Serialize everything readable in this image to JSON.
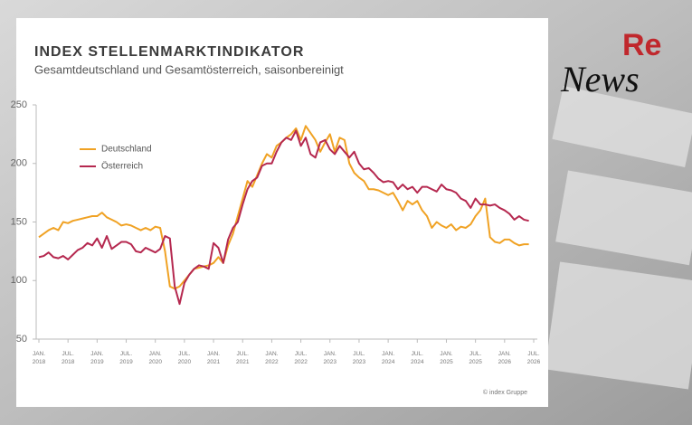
{
  "chart_data": {
    "type": "line",
    "title": "INDEX STELLENMARKTINDIKATOR",
    "subtitle": "Gesamtdeutschland und Gesamtösterreich, saisonbereinigt",
    "source": "© index Gruppe",
    "x": [
      "2018-01",
      "2018-02",
      "2018-03",
      "2018-04",
      "2018-05",
      "2018-06",
      "2018-07",
      "2018-08",
      "2018-09",
      "2018-10",
      "2018-11",
      "2018-12",
      "2019-01",
      "2019-02",
      "2019-03",
      "2019-04",
      "2019-05",
      "2019-06",
      "2019-07",
      "2019-08",
      "2019-09",
      "2019-10",
      "2019-11",
      "2019-12",
      "2020-01",
      "2020-02",
      "2020-03",
      "2020-04",
      "2020-05",
      "2020-06",
      "2020-07",
      "2020-08",
      "2020-09",
      "2020-10",
      "2020-11",
      "2020-12",
      "2021-01",
      "2021-02",
      "2021-03",
      "2021-04",
      "2021-05",
      "2021-06",
      "2021-07",
      "2021-08",
      "2021-09",
      "2021-10",
      "2021-11",
      "2021-12",
      "2022-01",
      "2022-02",
      "2022-03",
      "2022-04",
      "2022-05",
      "2022-06",
      "2022-07",
      "2022-08",
      "2022-09",
      "2022-10",
      "2022-11",
      "2022-12",
      "2023-01",
      "2023-02",
      "2023-03",
      "2023-04",
      "2023-05",
      "2023-06",
      "2023-07",
      "2023-08",
      "2023-09",
      "2023-10",
      "2023-11",
      "2023-12",
      "2024-01",
      "2024-02",
      "2024-03",
      "2024-04",
      "2024-05",
      "2024-06",
      "2024-07",
      "2024-08",
      "2024-09",
      "2024-10",
      "2024-11",
      "2024-12",
      "2025-01",
      "2025-02",
      "2025-03",
      "2025-04",
      "2025-05",
      "2025-06",
      "2025-07",
      "2025-08",
      "2025-09",
      "2025-10",
      "2025-11",
      "2025-12",
      "2026-01",
      "2026-02",
      "2026-03",
      "2026-04",
      "2026-05",
      "2026-06"
    ],
    "series": [
      {
        "name": "Deutschland",
        "color": "#f0a224",
        "values": [
          137,
          140,
          143,
          145,
          143,
          150,
          149,
          151,
          152,
          153,
          154,
          155,
          155,
          158,
          154,
          152,
          150,
          147,
          148,
          147,
          145,
          143,
          145,
          143,
          146,
          145,
          125,
          95,
          93,
          95,
          100,
          105,
          110,
          111,
          112,
          113,
          115,
          120,
          115,
          130,
          140,
          155,
          170,
          185,
          180,
          190,
          200,
          208,
          205,
          215,
          218,
          222,
          225,
          230,
          220,
          232,
          226,
          220,
          210,
          218,
          225,
          210,
          222,
          220,
          200,
          192,
          188,
          185,
          178,
          178,
          177,
          175,
          173,
          175,
          168,
          160,
          168,
          165,
          168,
          160,
          155,
          145,
          150,
          147,
          145,
          148,
          143,
          146,
          145,
          148,
          155,
          160,
          170,
          137,
          133,
          132,
          135,
          135,
          132,
          130,
          131,
          131
        ]
      },
      {
        "name": "Österreich",
        "color": "#b5284f",
        "values": [
          120,
          121,
          124,
          120,
          119,
          121,
          118,
          122,
          126,
          128,
          132,
          130,
          136,
          128,
          138,
          127,
          130,
          133,
          133,
          131,
          125,
          124,
          128,
          126,
          124,
          127,
          138,
          136,
          95,
          80,
          98,
          105,
          110,
          113,
          112,
          110,
          132,
          128,
          115,
          135,
          145,
          150,
          165,
          178,
          185,
          188,
          198,
          200,
          200,
          210,
          218,
          222,
          220,
          228,
          215,
          222,
          208,
          205,
          218,
          220,
          212,
          208,
          215,
          210,
          205,
          210,
          200,
          195,
          196,
          192,
          187,
          184,
          185,
          184,
          178,
          182,
          178,
          180,
          175,
          180,
          180,
          178,
          176,
          182,
          178,
          177,
          175,
          170,
          168,
          162,
          170,
          165,
          165,
          164,
          165,
          162,
          160,
          157,
          152,
          155,
          152,
          151
        ]
      }
    ],
    "xlim": [
      "2018-01",
      "2026-07"
    ],
    "xticks": [
      {
        "value": "2018-01",
        "label": "JAN. 2018"
      },
      {
        "value": "2018-07",
        "label": "JUL. 2018"
      },
      {
        "value": "2019-01",
        "label": "JAN. 2019"
      },
      {
        "value": "2019-07",
        "label": "JUL. 2019"
      },
      {
        "value": "2020-01",
        "label": "JAN. 2020"
      },
      {
        "value": "2020-07",
        "label": "JUL. 2020"
      },
      {
        "value": "2021-01",
        "label": "JAN. 2021"
      },
      {
        "value": "2021-07",
        "label": "JUL. 2021"
      },
      {
        "value": "2022-01",
        "label": "JAN. 2022"
      },
      {
        "value": "2022-07",
        "label": "JUL. 2022"
      },
      {
        "value": "2023-01",
        "label": "JAN. 2023"
      },
      {
        "value": "2023-07",
        "label": "JUL. 2023"
      },
      {
        "value": "2024-01",
        "label": "JAN. 2024"
      },
      {
        "value": "2024-07",
        "label": "JUL. 2024"
      },
      {
        "value": "2025-01",
        "label": "JAN. 2025"
      },
      {
        "value": "2025-07",
        "label": "JUL. 2025"
      },
      {
        "value": "2026-01",
        "label": "JAN. 2026"
      },
      {
        "value": "2026-07",
        "label": "JUL. 2026"
      }
    ],
    "ylim": [
      50,
      250
    ],
    "yticks": [
      50,
      100,
      150,
      200,
      250
    ],
    "grid": false,
    "legend": "upper left"
  },
  "logo": {
    "re": "Re",
    "news": "News"
  }
}
